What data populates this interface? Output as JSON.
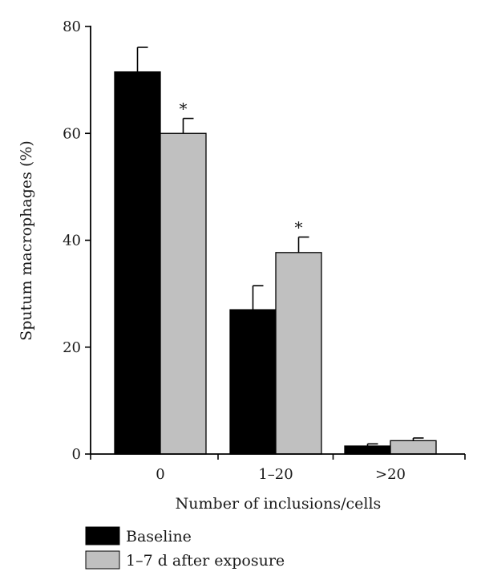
{
  "chart_data": {
    "type": "bar",
    "xlabel": "Number of inclusions/cells",
    "ylabel": "Sputum macrophages (%)",
    "ylim": [
      0,
      80
    ],
    "yticks": [
      0,
      20,
      40,
      60,
      80
    ],
    "categories": [
      "0",
      "1–20",
      ">20"
    ],
    "series": [
      {
        "name": "Baseline",
        "color": "#000000",
        "values": [
          71.5,
          27.0,
          1.5
        ],
        "errors": [
          4.6,
          4.5,
          0.4
        ],
        "significance": [
          "",
          "",
          ""
        ]
      },
      {
        "name": "1–7 d after exposure",
        "color": "#c0c0c0",
        "values": [
          60.0,
          37.7,
          2.5
        ],
        "errors": [
          2.8,
          2.9,
          0.5
        ],
        "significance": [
          "*",
          "*",
          ""
        ]
      }
    ],
    "legend_position": "bottom-left"
  }
}
